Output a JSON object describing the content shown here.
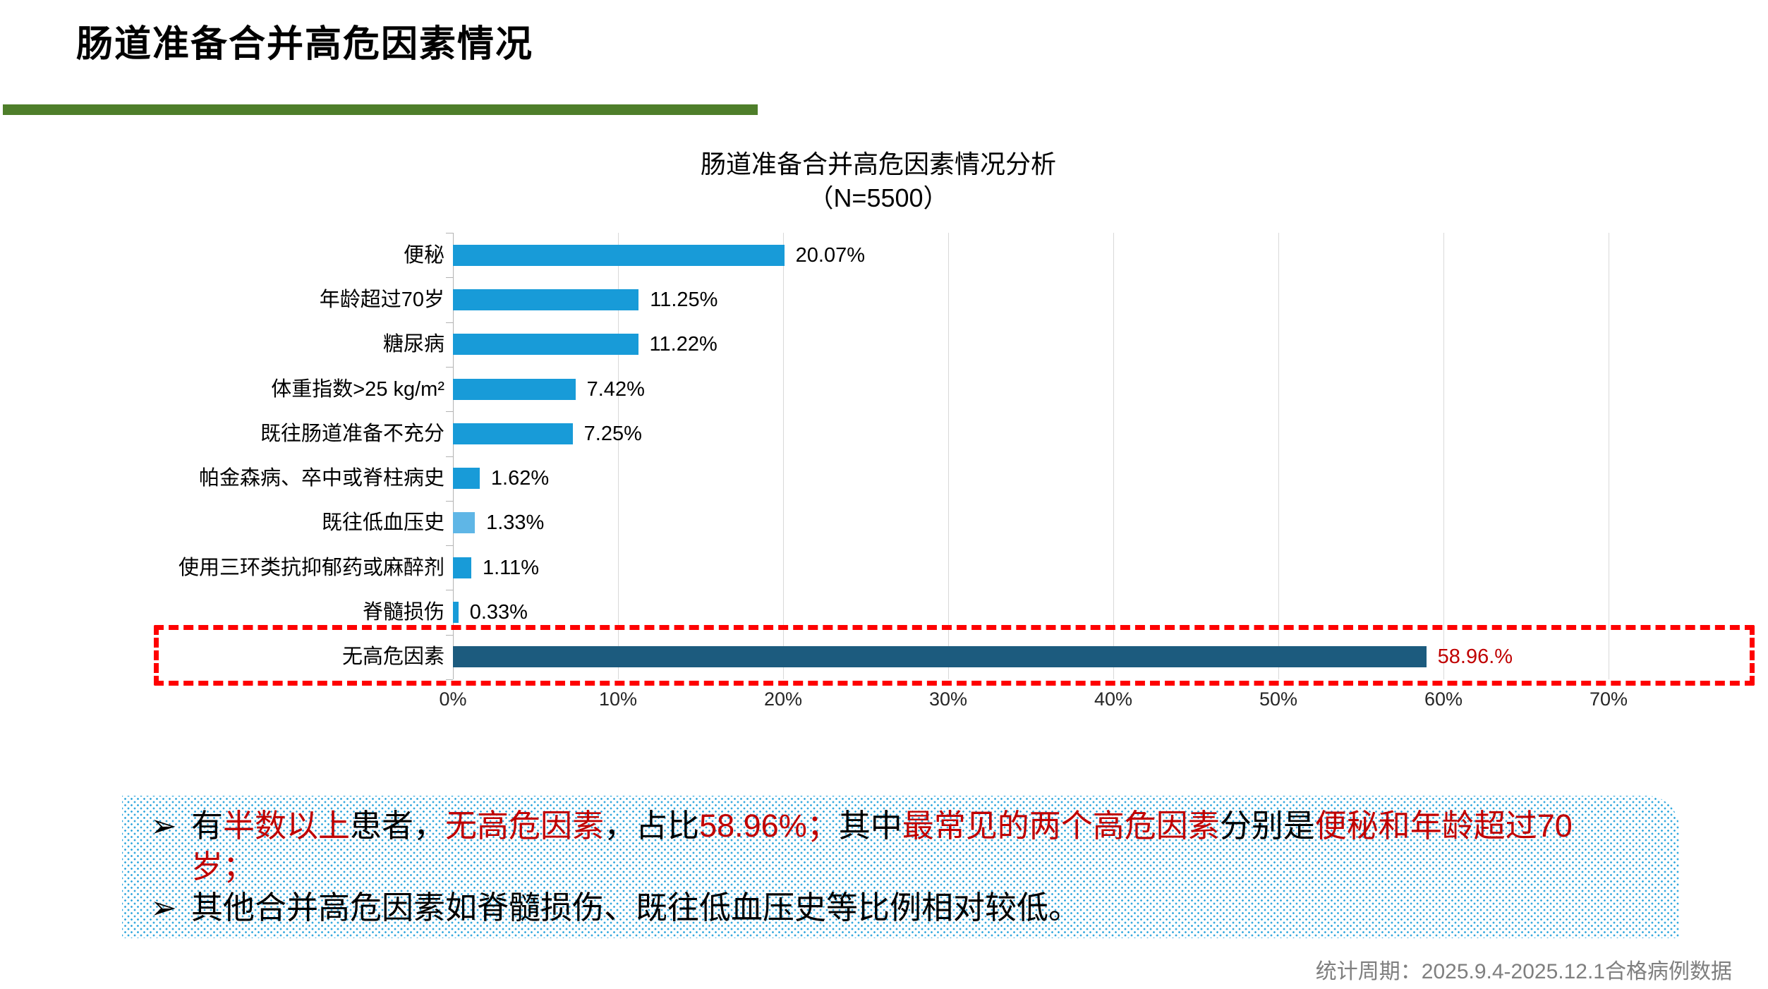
{
  "slide": {
    "title": "肠道准备合并高危因素情况",
    "footer": "统计周期：2025.9.4-2025.12.1合格病例数据",
    "colors": {
      "accent_green": "#4e7e2a",
      "footer_gray": "#7f7f7f",
      "callout_dot_blue": "#35a9de",
      "emphasis_red": "#c00000",
      "dashed_box_red": "#fe0101"
    }
  },
  "chart_data": {
    "type": "bar",
    "orientation": "horizontal",
    "title_line1": "肠道准备合并高危因素情况分析",
    "title_line2": "（N=5500）",
    "categories": [
      "便秘",
      "年龄超过70岁",
      "糖尿病",
      "体重指数>25 kg/m²",
      "既往肠道准备不充分",
      "帕金森病、卒中或脊柱病史",
      "既往低血压史",
      "使用三环类抗抑郁药或麻醉剂",
      "脊髓损伤",
      "无高危因素"
    ],
    "values": [
      20.07,
      11.25,
      11.22,
      7.42,
      7.25,
      1.62,
      1.33,
      1.11,
      0.33,
      58.96
    ],
    "value_labels": [
      "20.07%",
      "11.25%",
      "11.22%",
      "7.42%",
      "7.25%",
      "1.62%",
      "1.33%",
      "1.11%",
      "0.33%",
      "58.96.%"
    ],
    "bar_styles": [
      "normal",
      "normal",
      "normal",
      "normal",
      "normal",
      "normal",
      "light",
      "normal",
      "normal",
      "dark"
    ],
    "bar_colors": {
      "normal": "#189bd8",
      "light": "#5fb6e6",
      "dark": "#1c5b7e"
    },
    "xlim": [
      0,
      70
    ],
    "x_ticks": [
      "0%",
      "10%",
      "20%",
      "30%",
      "40%",
      "50%",
      "60%",
      "70%"
    ],
    "grid": "vertical, light gray",
    "highlighted_category": "无高危因素",
    "highlight_style": "red dashed rectangle around last row, value label dark red"
  },
  "callout": {
    "bullet_glyph": "➢",
    "bullets": [
      {
        "segments": [
          {
            "t": "有",
            "c": "black"
          },
          {
            "t": "半数以上",
            "c": "red"
          },
          {
            "t": "患者，",
            "c": "black"
          },
          {
            "t": "无高危因素",
            "c": "red"
          },
          {
            "t": "，占比",
            "c": "black"
          },
          {
            "t": "58.96%；",
            "c": "red"
          },
          {
            "t": "其中",
            "c": "black"
          },
          {
            "t": "最常见的两个高危因素",
            "c": "red"
          },
          {
            "t": "分别是",
            "c": "black"
          },
          {
            "t": "便秘和年龄超过70",
            "c": "red"
          },
          {
            "br": true
          },
          {
            "t": "岁；",
            "c": "red"
          }
        ]
      },
      {
        "segments": [
          {
            "t": "其他合并高危因素如脊髓损伤、既往低血压史等比例相对较低。",
            "c": "black"
          }
        ]
      }
    ]
  }
}
